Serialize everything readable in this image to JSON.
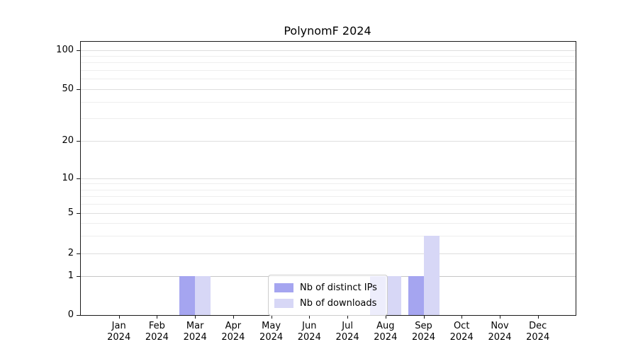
{
  "chart_data": {
    "type": "bar",
    "title": "PolynomF 2024",
    "x_axis": {
      "categories": [
        "Jan",
        "Feb",
        "Mar",
        "Apr",
        "May",
        "Jun",
        "Jul",
        "Aug",
        "Sep",
        "Oct",
        "Nov",
        "Dec"
      ],
      "year_label": "2024"
    },
    "y_axis": {
      "scale": "symlog",
      "ticks": [
        0,
        1,
        2,
        5,
        10,
        20,
        50,
        100
      ],
      "gridlines": [
        1,
        2,
        3,
        4,
        5,
        6,
        7,
        8,
        9,
        10,
        20,
        30,
        40,
        50,
        60,
        70,
        80,
        90,
        100
      ],
      "range": [
        0,
        115
      ],
      "grid": true
    },
    "series": [
      {
        "name": "Nb of distinct IPs",
        "color": "#a5a5f0",
        "values": [
          0,
          0,
          1,
          0,
          0,
          0,
          0,
          1,
          1,
          0,
          0,
          0
        ]
      },
      {
        "name": "Nb of downloads",
        "color": "#d7d7f6",
        "values": [
          0,
          0,
          1,
          0,
          0,
          0,
          0,
          1,
          3,
          0,
          0,
          0
        ]
      }
    ],
    "legend": {
      "position": "bottom-center",
      "entries": [
        "Nb of distinct IPs",
        "Nb of downloads"
      ]
    }
  }
}
